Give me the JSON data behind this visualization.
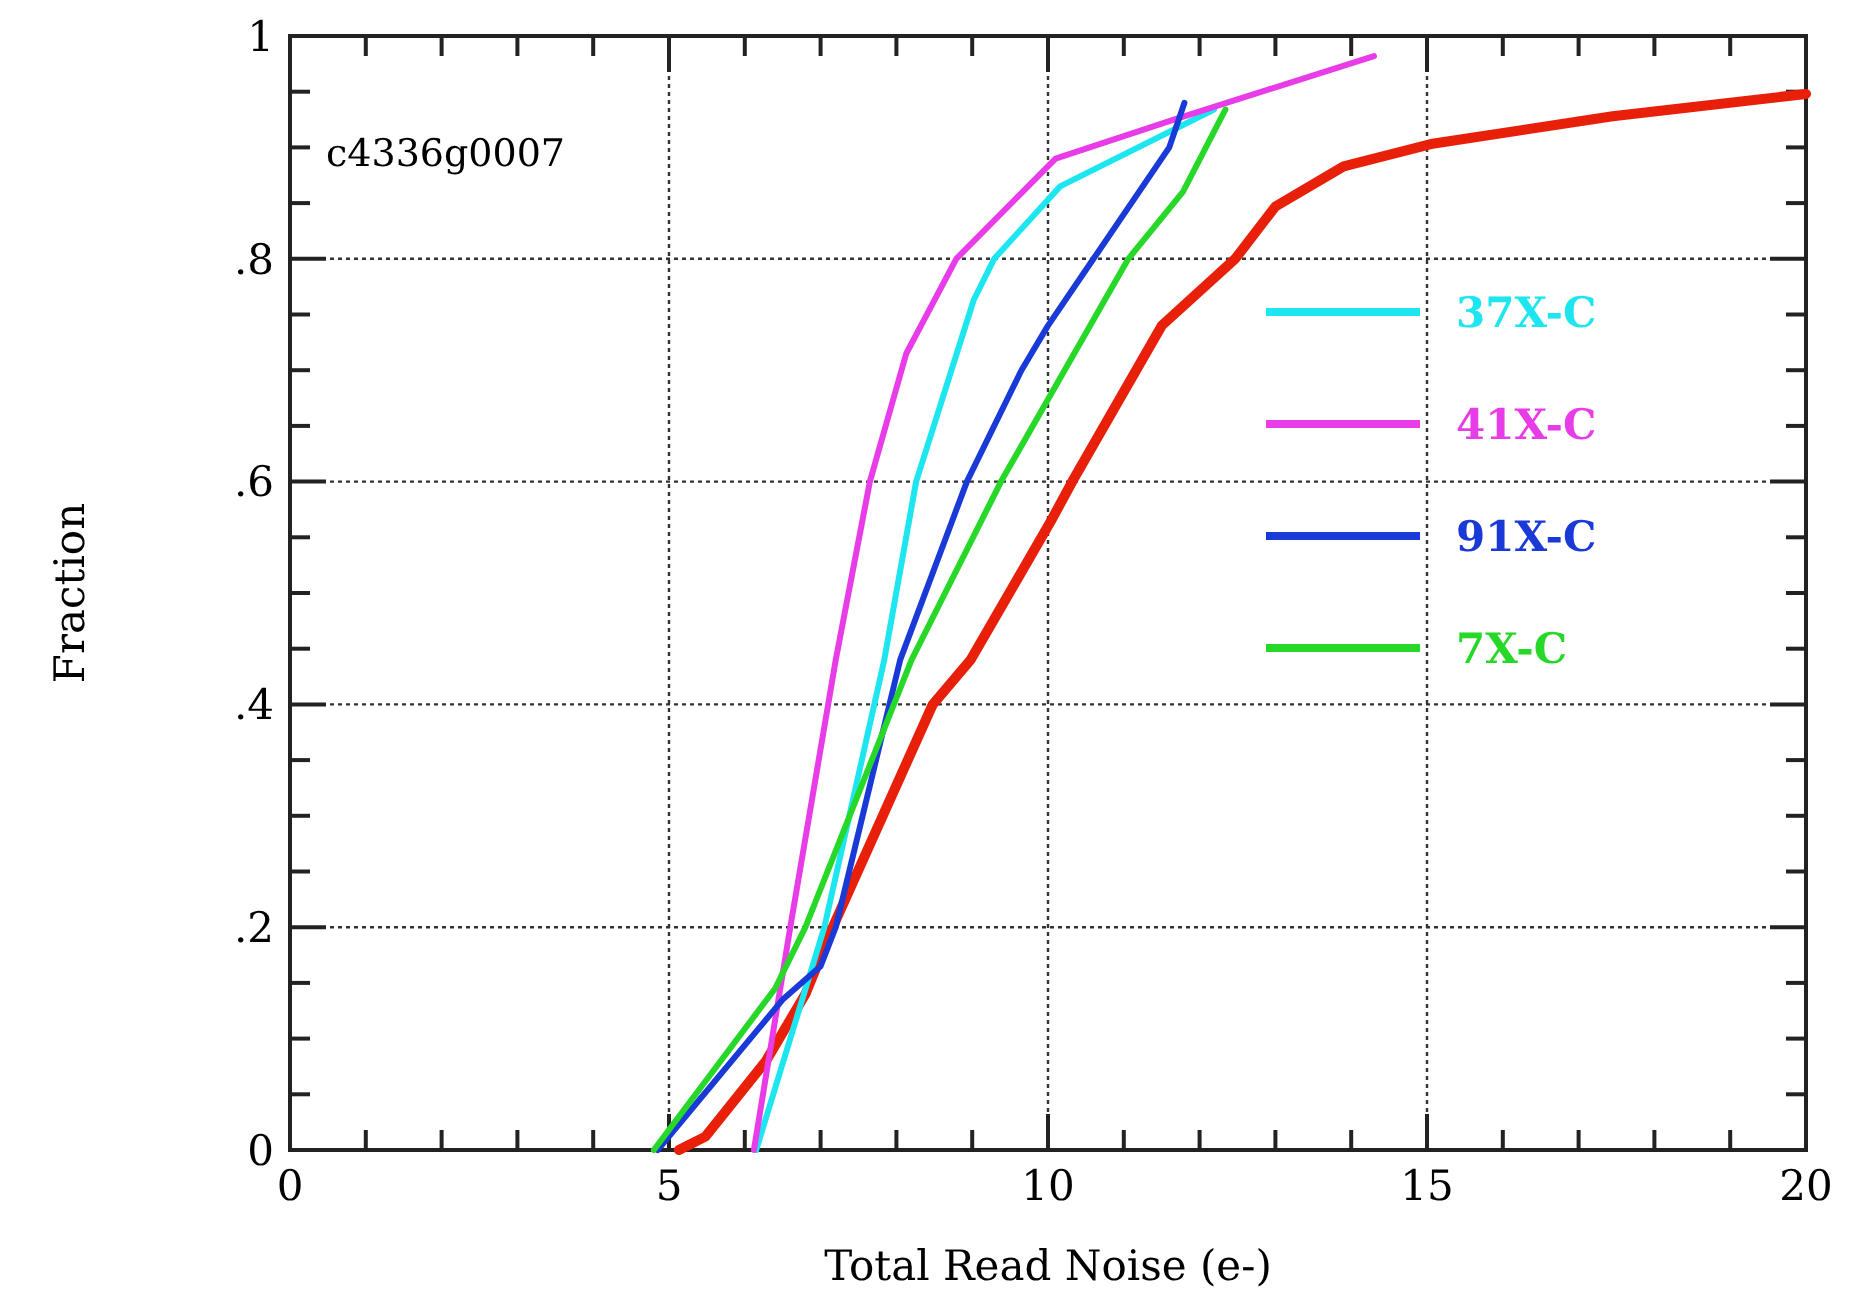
{
  "chart_data": {
    "type": "line",
    "xlabel": "Total Read Noise (e-)",
    "ylabel": "Fraction",
    "annotations": [
      "c4336g0007"
    ],
    "xlim": [
      0,
      20
    ],
    "ylim": [
      0,
      1
    ],
    "xticks": [
      0,
      {
        "value": 1,
        "label": null
      },
      {
        "value": 2,
        "label": null
      },
      {
        "value": 3,
        "label": null
      },
      {
        "value": 4,
        "label": null
      },
      5,
      {
        "value": 6,
        "label": null
      },
      {
        "value": 7,
        "label": null
      },
      {
        "value": 8,
        "label": null
      },
      {
        "value": 9,
        "label": null
      },
      10,
      {
        "value": 11,
        "label": null
      },
      {
        "value": 12,
        "label": null
      },
      {
        "value": 13,
        "label": null
      },
      {
        "value": 14,
        "label": null
      },
      15,
      {
        "value": 16,
        "label": null
      },
      {
        "value": 17,
        "label": null
      },
      {
        "value": 18,
        "label": null
      },
      {
        "value": 19,
        "label": null
      },
      20
    ],
    "yticks": [
      0,
      {
        "value": 0.05,
        "label": null
      },
      {
        "value": 0.1,
        "label": null
      },
      {
        "value": 0.15,
        "label": null
      },
      {
        "value": 0.2,
        "label": ".2"
      },
      {
        "value": 0.25,
        "label": null
      },
      {
        "value": 0.3,
        "label": null
      },
      {
        "value": 0.35,
        "label": null
      },
      {
        "value": 0.4,
        "label": ".4"
      },
      {
        "value": 0.45,
        "label": null
      },
      {
        "value": 0.5,
        "label": null
      },
      {
        "value": 0.55,
        "label": null
      },
      {
        "value": 0.6,
        "label": ".6"
      },
      {
        "value": 0.65,
        "label": null
      },
      {
        "value": 0.7,
        "label": null
      },
      {
        "value": 0.75,
        "label": null
      },
      {
        "value": 0.8,
        "label": ".8"
      },
      {
        "value": 0.85,
        "label": null
      },
      {
        "value": 0.9,
        "label": null
      },
      {
        "value": 0.95,
        "label": null
      },
      1
    ],
    "grid": true,
    "legend": "right",
    "marker": "none",
    "line_style": "solid",
    "series": [
      {
        "name": null,
        "color": "#e8200a",
        "x": [
          5.13,
          5.48,
          6.28,
          6.8,
          7.16,
          8.48,
          8.98,
          10.05,
          10.32,
          11.5,
          12.47,
          13.0,
          13.9,
          15.05,
          17.45,
          20
        ],
        "values": [
          0,
          0.012,
          0.08,
          0.14,
          0.2,
          0.4,
          0.44,
          0.566,
          0.6,
          0.74,
          0.8,
          0.847,
          0.883,
          0.903,
          0.928,
          0.948
        ]
      },
      {
        "name": "37X-C",
        "color": "#1ee6f0",
        "x": [
          6.15,
          7.05,
          7.84,
          8.26,
          9.02,
          9.29,
          10.16,
          12.19
        ],
        "values": [
          0,
          0.2,
          0.44,
          0.6,
          0.763,
          0.8,
          0.865,
          0.934
        ]
      },
      {
        "name": "41X-C",
        "color": "#e83ce8",
        "x": [
          6.12,
          6.6,
          7.2,
          7.65,
          8.13,
          8.79,
          10.1,
          11.66,
          14.3
        ],
        "values": [
          0,
          0.2,
          0.44,
          0.6,
          0.715,
          0.8,
          0.89,
          0.925,
          0.982
        ]
      },
      {
        "name": "91X-C",
        "color": "#1a3ad8",
        "x": [
          4.85,
          6.5,
          7.0,
          7.2,
          8.05,
          8.93,
          9.65,
          10.0,
          10.6,
          11.6,
          11.8
        ],
        "values": [
          0,
          0.135,
          0.165,
          0.2,
          0.44,
          0.6,
          0.7,
          0.74,
          0.8,
          0.9,
          0.94
        ]
      },
      {
        "name": "7X-C",
        "color": "#28d828",
        "x": [
          4.8,
          6.4,
          6.8,
          8.2,
          9.38,
          11.06,
          11.78,
          12.34
        ],
        "values": [
          0,
          0.145,
          0.2,
          0.44,
          0.6,
          0.8,
          0.86,
          0.934
        ]
      }
    ]
  }
}
